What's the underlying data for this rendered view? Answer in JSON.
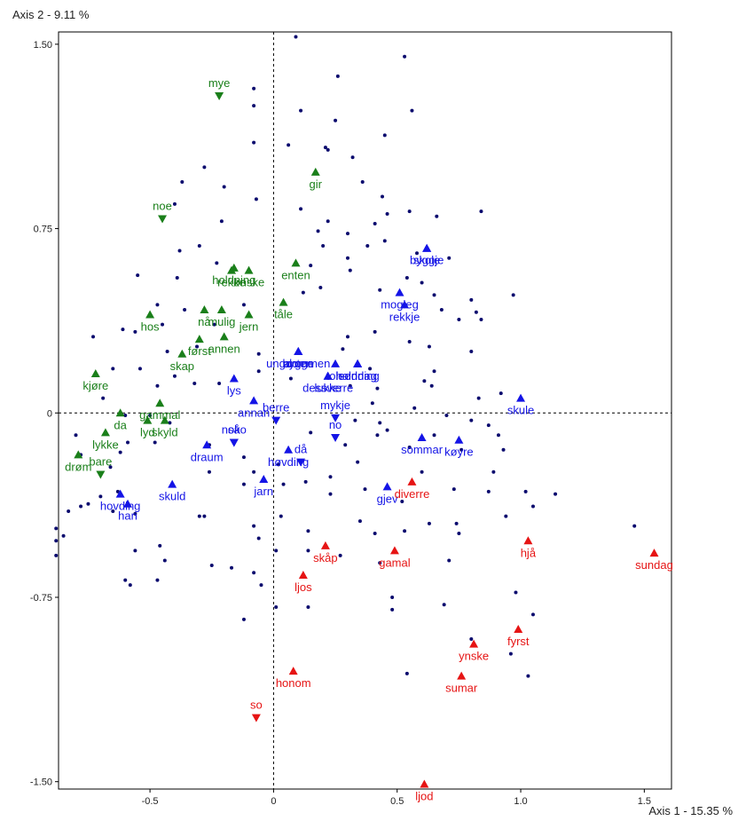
{
  "chart_data": {
    "type": "scatter",
    "title": "",
    "xlabel": "Axis 1  -  15.35 %",
    "ylabel": "Axis 2  -  9.11 %",
    "xlim": [
      -0.87,
      1.61
    ],
    "ylim": [
      -1.53,
      1.55
    ],
    "xticks": [
      -0.5,
      0,
      0.5,
      1.0,
      1.5
    ],
    "xtick_labels": [
      "-0.5",
      "0",
      "0.5",
      "1.0",
      "1.5"
    ],
    "yticks": [
      1.5,
      0.75,
      0,
      -0.75,
      -1.5
    ],
    "ytick_labels": [
      "1.50",
      "0.75",
      "0",
      "-0.75",
      "-1.50"
    ],
    "grid": false,
    "zero_lines": "dashed",
    "colors": {
      "green": "#1a7f1a",
      "blue": "#1414e6",
      "red": "#e61414",
      "points": "#0a0a6e"
    },
    "series": [
      {
        "color": "green",
        "points": [
          {
            "label": "mye",
            "x": -0.22,
            "y": 1.29,
            "marker": "down"
          },
          {
            "label": "gir",
            "x": 0.17,
            "y": 0.98,
            "marker": "up"
          },
          {
            "label": "noe",
            "x": -0.45,
            "y": 0.79,
            "marker": "down"
          },
          {
            "label": "holdning",
            "x": -0.16,
            "y": 0.59,
            "marker": "up"
          },
          {
            "label": "enten",
            "x": 0.09,
            "y": 0.61,
            "marker": "up"
          },
          {
            "label": "rekke",
            "x": -0.17,
            "y": 0.58,
            "marker": "up"
          },
          {
            "label": "ønske",
            "x": -0.1,
            "y": 0.58,
            "marker": "up"
          },
          {
            "label": "tåle",
            "x": 0.04,
            "y": 0.45,
            "marker": "up"
          },
          {
            "label": "nå",
            "x": -0.28,
            "y": 0.42,
            "marker": "up"
          },
          {
            "label": "mulig",
            "x": -0.21,
            "y": 0.42,
            "marker": "up"
          },
          {
            "label": "jern",
            "x": -0.1,
            "y": 0.4,
            "marker": "up"
          },
          {
            "label": "hos",
            "x": -0.5,
            "y": 0.4,
            "marker": "up"
          },
          {
            "label": "først",
            "x": -0.3,
            "y": 0.3,
            "marker": "up"
          },
          {
            "label": "annen",
            "x": -0.2,
            "y": 0.31,
            "marker": "up"
          },
          {
            "label": "skap",
            "x": -0.37,
            "y": 0.24,
            "marker": "up"
          },
          {
            "label": "kjøre",
            "x": -0.72,
            "y": 0.16,
            "marker": "up"
          },
          {
            "label": "gammal",
            "x": -0.46,
            "y": 0.04,
            "marker": "up"
          },
          {
            "label": "da",
            "x": -0.62,
            "y": 0.0,
            "marker": "up"
          },
          {
            "label": "lykke",
            "x": -0.68,
            "y": -0.08,
            "marker": "up"
          },
          {
            "label": "lyd",
            "x": -0.51,
            "y": -0.03,
            "marker": "up"
          },
          {
            "label": "skyld",
            "x": -0.44,
            "y": -0.03,
            "marker": "up"
          },
          {
            "label": "drøm",
            "x": -0.79,
            "y": -0.17,
            "marker": "up"
          },
          {
            "label": "bare",
            "x": -0.7,
            "y": -0.25,
            "marker": "down"
          }
        ]
      },
      {
        "color": "blue",
        "points": [
          {
            "label": "skole",
            "x": 0.62,
            "y": 0.67,
            "marker": "up"
          },
          {
            "label": "byggje",
            "x": 0.62,
            "y": 0.67,
            "marker": "up"
          },
          {
            "label": "mogleg",
            "x": 0.51,
            "y": 0.49,
            "marker": "up"
          },
          {
            "label": "rekkje",
            "x": 0.53,
            "y": 0.44,
            "marker": "up"
          },
          {
            "label": "ungdommen",
            "x": 0.1,
            "y": 0.25,
            "marker": "up"
          },
          {
            "label": "bygge",
            "x": 0.1,
            "y": 0.25,
            "marker": "up"
          },
          {
            "label": "anten",
            "x": 0.1,
            "y": 0.25,
            "marker": "up"
          },
          {
            "label": "tole",
            "x": 0.25,
            "y": 0.2,
            "marker": "up"
          },
          {
            "label": "haldning",
            "x": 0.34,
            "y": 0.2,
            "marker": "up"
          },
          {
            "label": "lys",
            "x": -0.16,
            "y": 0.14,
            "marker": "up"
          },
          {
            "label": "dessverre",
            "x": 0.22,
            "y": 0.15,
            "marker": "up"
          },
          {
            "label": "søndag",
            "x": 0.34,
            "y": 0.2,
            "marker": "up"
          },
          {
            "label": "lukke",
            "x": 0.22,
            "y": 0.15,
            "marker": "up"
          },
          {
            "label": "annan",
            "x": -0.08,
            "y": 0.05,
            "marker": "up"
          },
          {
            "label": "skule",
            "x": 1.0,
            "y": 0.06,
            "marker": "up"
          },
          {
            "label": "mykje",
            "x": 0.25,
            "y": -0.02,
            "marker": "down"
          },
          {
            "label": "berre",
            "x": 0.01,
            "y": -0.03,
            "marker": "down"
          },
          {
            "label": "sommar",
            "x": 0.6,
            "y": -0.1,
            "marker": "up"
          },
          {
            "label": "køyre",
            "x": 0.75,
            "y": -0.11,
            "marker": "up"
          },
          {
            "label": "noko",
            "x": -0.16,
            "y": -0.12,
            "marker": "down"
          },
          {
            "label": "no",
            "x": 0.25,
            "y": -0.1,
            "marker": "down"
          },
          {
            "label": "draum",
            "x": -0.27,
            "y": -0.13,
            "marker": "up"
          },
          {
            "label": "så",
            "x": -0.16,
            "y": -0.12,
            "marker": "down"
          },
          {
            "label": "høvding",
            "x": 0.06,
            "y": -0.15,
            "marker": "up"
          },
          {
            "label": "då",
            "x": 0.11,
            "y": -0.2,
            "marker": "down"
          },
          {
            "label": "jarn",
            "x": -0.04,
            "y": -0.27,
            "marker": "up"
          },
          {
            "label": "gjev",
            "x": 0.46,
            "y": -0.3,
            "marker": "up"
          },
          {
            "label": "skuld",
            "x": -0.41,
            "y": -0.29,
            "marker": "up"
          },
          {
            "label": "hovding",
            "x": -0.62,
            "y": -0.33,
            "marker": "up"
          },
          {
            "label": "han",
            "x": -0.59,
            "y": -0.37,
            "marker": "up"
          }
        ]
      },
      {
        "color": "red",
        "points": [
          {
            "label": "diverre",
            "x": 0.56,
            "y": -0.28,
            "marker": "up"
          },
          {
            "label": "skåp",
            "x": 0.21,
            "y": -0.54,
            "marker": "up"
          },
          {
            "label": "gamal",
            "x": 0.49,
            "y": -0.56,
            "marker": "up"
          },
          {
            "label": "hjå",
            "x": 1.03,
            "y": -0.52,
            "marker": "up"
          },
          {
            "label": "sundag",
            "x": 1.54,
            "y": -0.57,
            "marker": "up"
          },
          {
            "label": "ljos",
            "x": 0.12,
            "y": -0.66,
            "marker": "up"
          },
          {
            "label": "fyrst",
            "x": 0.99,
            "y": -0.88,
            "marker": "up"
          },
          {
            "label": "ynske",
            "x": 0.81,
            "y": -0.94,
            "marker": "up"
          },
          {
            "label": "honom",
            "x": 0.08,
            "y": -1.05,
            "marker": "up"
          },
          {
            "label": "sumar",
            "x": 0.76,
            "y": -1.07,
            "marker": "up"
          },
          {
            "label": "so",
            "x": -0.07,
            "y": -1.24,
            "marker": "down"
          },
          {
            "label": "ljod",
            "x": 0.61,
            "y": -1.51,
            "marker": "up"
          }
        ]
      }
    ],
    "unlabeled_points": [
      [
        0.09,
        1.53
      ],
      [
        0.53,
        1.45
      ],
      [
        0.26,
        1.37
      ],
      [
        -0.08,
        1.32
      ],
      [
        -0.08,
        1.25
      ],
      [
        0.11,
        1.23
      ],
      [
        0.56,
        1.23
      ],
      [
        0.25,
        1.19
      ],
      [
        0.45,
        1.13
      ],
      [
        0.21,
        1.08
      ],
      [
        -0.08,
        1.1
      ],
      [
        0.06,
        1.09
      ],
      [
        0.22,
        1.07
      ],
      [
        0.32,
        1.04
      ],
      [
        -0.28,
        1.0
      ],
      [
        -0.37,
        0.94
      ],
      [
        -0.2,
        0.92
      ],
      [
        -0.4,
        0.85
      ],
      [
        0.36,
        0.94
      ],
      [
        0.44,
        0.88
      ],
      [
        -0.07,
        0.87
      ],
      [
        0.11,
        0.83
      ],
      [
        0.55,
        0.82
      ],
      [
        0.46,
        0.81
      ],
      [
        0.66,
        0.8
      ],
      [
        0.84,
        0.82
      ],
      [
        -0.21,
        0.78
      ],
      [
        0.22,
        0.78
      ],
      [
        0.41,
        0.77
      ],
      [
        0.3,
        0.73
      ],
      [
        0.18,
        0.74
      ],
      [
        0.45,
        0.7
      ],
      [
        0.2,
        0.68
      ],
      [
        0.38,
        0.68
      ],
      [
        -0.3,
        0.68
      ],
      [
        -0.38,
        0.66
      ],
      [
        0.58,
        0.65
      ],
      [
        0.3,
        0.63
      ],
      [
        0.71,
        0.63
      ],
      [
        -0.23,
        0.61
      ],
      [
        0.15,
        0.6
      ],
      [
        0.31,
        0.58
      ],
      [
        0.54,
        0.55
      ],
      [
        0.6,
        0.53
      ],
      [
        -0.39,
        0.55
      ],
      [
        -0.55,
        0.56
      ],
      [
        0.19,
        0.51
      ],
      [
        0.43,
        0.5
      ],
      [
        0.12,
        0.49
      ],
      [
        0.65,
        0.48
      ],
      [
        0.8,
        0.46
      ],
      [
        0.82,
        0.41
      ],
      [
        0.97,
        0.48
      ],
      [
        -0.47,
        0.44
      ],
      [
        -0.36,
        0.42
      ],
      [
        -0.12,
        0.44
      ],
      [
        -0.24,
        0.36
      ],
      [
        0.68,
        0.42
      ],
      [
        0.75,
        0.38
      ],
      [
        0.84,
        0.38
      ],
      [
        -0.45,
        0.36
      ],
      [
        -0.56,
        0.33
      ],
      [
        -0.61,
        0.34
      ],
      [
        0.41,
        0.33
      ],
      [
        0.3,
        0.31
      ],
      [
        -0.73,
        0.31
      ],
      [
        0.55,
        0.29
      ],
      [
        -0.31,
        0.27
      ],
      [
        0.63,
        0.27
      ],
      [
        -0.06,
        0.24
      ],
      [
        0.28,
        0.26
      ],
      [
        -0.43,
        0.25
      ],
      [
        0.8,
        0.25
      ],
      [
        -0.54,
        0.18
      ],
      [
        -0.65,
        0.18
      ],
      [
        0.39,
        0.18
      ],
      [
        0.65,
        0.17
      ],
      [
        -0.06,
        0.17
      ],
      [
        -0.4,
        0.15
      ],
      [
        0.07,
        0.14
      ],
      [
        0.61,
        0.13
      ],
      [
        -0.22,
        0.12
      ],
      [
        -0.32,
        0.12
      ],
      [
        -0.47,
        0.11
      ],
      [
        0.64,
        0.11
      ],
      [
        0.31,
        0.11
      ],
      [
        0.42,
        0.1
      ],
      [
        0.92,
        0.08
      ],
      [
        0.83,
        0.06
      ],
      [
        -0.69,
        0.06
      ],
      [
        0.4,
        0.04
      ],
      [
        0.57,
        0.02
      ],
      [
        0.7,
        -0.01
      ],
      [
        -0.6,
        -0.01
      ],
      [
        -0.5,
        -0.01
      ],
      [
        -0.42,
        -0.04
      ],
      [
        0.33,
        -0.03
      ],
      [
        0.43,
        -0.04
      ],
      [
        0.8,
        -0.03
      ],
      [
        0.87,
        -0.05
      ],
      [
        0.46,
        -0.07
      ],
      [
        0.15,
        -0.08
      ],
      [
        0.42,
        -0.09
      ],
      [
        -0.8,
        -0.09
      ],
      [
        0.65,
        -0.09
      ],
      [
        0.91,
        -0.09
      ],
      [
        -0.59,
        -0.12
      ],
      [
        -0.48,
        -0.12
      ],
      [
        -0.26,
        -0.13
      ],
      [
        0.29,
        -0.13
      ],
      [
        0.55,
        -0.14
      ],
      [
        0.76,
        -0.15
      ],
      [
        0.93,
        -0.15
      ],
      [
        -0.62,
        -0.16
      ],
      [
        -0.78,
        -0.17
      ],
      [
        -0.12,
        -0.18
      ],
      [
        0.34,
        -0.2
      ],
      [
        0.02,
        -0.21
      ],
      [
        -0.66,
        -0.22
      ],
      [
        -0.08,
        -0.24
      ],
      [
        0.6,
        -0.24
      ],
      [
        0.89,
        -0.24
      ],
      [
        -0.26,
        -0.24
      ],
      [
        0.23,
        -0.26
      ],
      [
        0.04,
        -0.29
      ],
      [
        0.13,
        -0.28
      ],
      [
        -0.12,
        -0.29
      ],
      [
        0.37,
        -0.31
      ],
      [
        0.73,
        -0.31
      ],
      [
        -0.63,
        -0.32
      ],
      [
        0.87,
        -0.32
      ],
      [
        1.02,
        -0.32
      ],
      [
        -0.7,
        -0.34
      ],
      [
        0.23,
        -0.33
      ],
      [
        0.52,
        -0.36
      ],
      [
        -0.75,
        -0.37
      ],
      [
        -0.78,
        -0.38
      ],
      [
        -0.83,
        -0.4
      ],
      [
        -0.65,
        -0.4
      ],
      [
        -0.56,
        -0.41
      ],
      [
        -0.28,
        -0.42
      ],
      [
        -0.3,
        -0.42
      ],
      [
        0.03,
        -0.42
      ],
      [
        0.35,
        -0.44
      ],
      [
        0.63,
        -0.45
      ],
      [
        0.74,
        -0.45
      ],
      [
        0.94,
        -0.42
      ],
      [
        1.05,
        -0.38
      ],
      [
        1.14,
        -0.33
      ],
      [
        1.46,
        -0.46
      ],
      [
        -0.88,
        -0.47
      ],
      [
        -0.08,
        -0.46
      ],
      [
        0.14,
        -0.48
      ],
      [
        0.41,
        -0.49
      ],
      [
        0.53,
        -0.48
      ],
      [
        0.75,
        -0.49
      ],
      [
        -0.85,
        -0.5
      ],
      [
        -0.88,
        -0.52
      ],
      [
        -0.06,
        -0.51
      ],
      [
        -0.46,
        -0.54
      ],
      [
        -0.56,
        -0.56
      ],
      [
        0.01,
        -0.56
      ],
      [
        0.14,
        -0.56
      ],
      [
        -0.88,
        -0.58
      ],
      [
        -0.44,
        -0.6
      ],
      [
        -0.25,
        -0.62
      ],
      [
        0.27,
        -0.58
      ],
      [
        0.43,
        -0.61
      ],
      [
        0.71,
        -0.6
      ],
      [
        -0.6,
        -0.68
      ],
      [
        -0.58,
        -0.7
      ],
      [
        -0.47,
        -0.68
      ],
      [
        -0.17,
        -0.63
      ],
      [
        -0.08,
        -0.65
      ],
      [
        -0.05,
        -0.7
      ],
      [
        0.48,
        -0.75
      ],
      [
        0.69,
        -0.78
      ],
      [
        0.98,
        -0.73
      ],
      [
        0.48,
        -0.8
      ],
      [
        0.01,
        -0.79
      ],
      [
        0.14,
        -0.79
      ],
      [
        -0.12,
        -0.84
      ],
      [
        0.8,
        -0.92
      ],
      [
        0.54,
        -1.06
      ],
      [
        0.96,
        -0.98
      ],
      [
        1.03,
        -1.07
      ],
      [
        1.05,
        -0.82
      ]
    ]
  }
}
